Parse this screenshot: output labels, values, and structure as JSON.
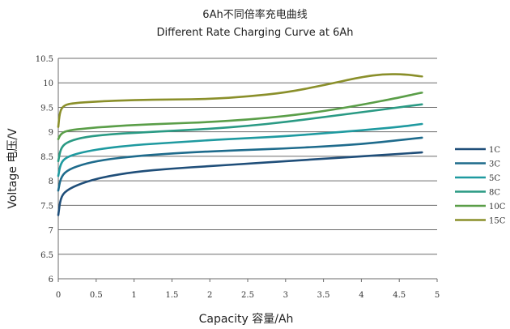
{
  "chart_data": {
    "type": "line",
    "title": "6Ah不同倍率充电曲线",
    "subtitle": "Different Rate Charging Curve at 6Ah",
    "xlabel": "Capacity 容量/Ah",
    "ylabel": "Voltage 电压/V",
    "xlim": [
      0,
      5
    ],
    "ylim": [
      6,
      10.5
    ],
    "x_ticks": [
      "0",
      "0.5",
      "1",
      "1.5",
      "2",
      "2.5",
      "3",
      "3.5",
      "4",
      "4.5",
      "5"
    ],
    "y_ticks": [
      "6",
      "6.5",
      "7",
      "7.5",
      "8",
      "8.5",
      "9",
      "9.5",
      "10",
      "10.5"
    ],
    "grid": "horizontal",
    "legend_position": "right",
    "series": [
      {
        "name": "1C",
        "color": "#1f4e79",
        "points": [
          [
            0,
            7.3
          ],
          [
            0.03,
            7.65
          ],
          [
            0.1,
            7.8
          ],
          [
            0.3,
            7.95
          ],
          [
            0.6,
            8.08
          ],
          [
            1.0,
            8.18
          ],
          [
            1.5,
            8.25
          ],
          [
            2.0,
            8.3
          ],
          [
            2.5,
            8.35
          ],
          [
            3.0,
            8.4
          ],
          [
            3.5,
            8.45
          ],
          [
            4.0,
            8.5
          ],
          [
            4.5,
            8.55
          ],
          [
            4.8,
            8.58
          ]
        ]
      },
      {
        "name": "3C",
        "color": "#1e6b8c",
        "points": [
          [
            0,
            7.8
          ],
          [
            0.03,
            8.05
          ],
          [
            0.1,
            8.2
          ],
          [
            0.3,
            8.33
          ],
          [
            0.6,
            8.43
          ],
          [
            1.0,
            8.5
          ],
          [
            1.5,
            8.56
          ],
          [
            2.0,
            8.6
          ],
          [
            2.5,
            8.63
          ],
          [
            3.0,
            8.66
          ],
          [
            3.5,
            8.7
          ],
          [
            4.0,
            8.75
          ],
          [
            4.5,
            8.83
          ],
          [
            4.8,
            8.88
          ]
        ]
      },
      {
        "name": "5C",
        "color": "#1f9aa0",
        "points": [
          [
            0,
            8.1
          ],
          [
            0.03,
            8.35
          ],
          [
            0.1,
            8.48
          ],
          [
            0.3,
            8.58
          ],
          [
            0.6,
            8.66
          ],
          [
            1.0,
            8.73
          ],
          [
            1.5,
            8.78
          ],
          [
            2.0,
            8.83
          ],
          [
            2.5,
            8.87
          ],
          [
            3.0,
            8.91
          ],
          [
            3.5,
            8.97
          ],
          [
            4.0,
            9.03
          ],
          [
            4.5,
            9.1
          ],
          [
            4.8,
            9.16
          ]
        ]
      },
      {
        "name": "8C",
        "color": "#2a9a84",
        "points": [
          [
            0,
            8.4
          ],
          [
            0.03,
            8.65
          ],
          [
            0.1,
            8.78
          ],
          [
            0.3,
            8.88
          ],
          [
            0.6,
            8.94
          ],
          [
            1.0,
            8.98
          ],
          [
            1.5,
            9.02
          ],
          [
            2.0,
            9.06
          ],
          [
            2.5,
            9.12
          ],
          [
            3.0,
            9.2
          ],
          [
            3.5,
            9.3
          ],
          [
            4.0,
            9.4
          ],
          [
            4.5,
            9.5
          ],
          [
            4.8,
            9.56
          ]
        ]
      },
      {
        "name": "10C",
        "color": "#5a9e48",
        "points": [
          [
            0,
            8.85
          ],
          [
            0.03,
            8.95
          ],
          [
            0.1,
            9.02
          ],
          [
            0.3,
            9.06
          ],
          [
            0.6,
            9.1
          ],
          [
            1.0,
            9.14
          ],
          [
            1.5,
            9.17
          ],
          [
            2.0,
            9.2
          ],
          [
            2.5,
            9.25
          ],
          [
            3.0,
            9.32
          ],
          [
            3.5,
            9.42
          ],
          [
            4.0,
            9.55
          ],
          [
            4.5,
            9.7
          ],
          [
            4.8,
            9.8
          ]
        ]
      },
      {
        "name": "15C",
        "color": "#8a8f2a",
        "points": [
          [
            0,
            9.1
          ],
          [
            0.02,
            9.4
          ],
          [
            0.06,
            9.52
          ],
          [
            0.15,
            9.58
          ],
          [
            0.5,
            9.62
          ],
          [
            1.0,
            9.65
          ],
          [
            1.5,
            9.66
          ],
          [
            2.0,
            9.67
          ],
          [
            2.5,
            9.72
          ],
          [
            3.0,
            9.8
          ],
          [
            3.5,
            9.95
          ],
          [
            4.0,
            10.12
          ],
          [
            4.3,
            10.18
          ],
          [
            4.6,
            10.17
          ],
          [
            4.8,
            10.13
          ]
        ]
      }
    ]
  }
}
